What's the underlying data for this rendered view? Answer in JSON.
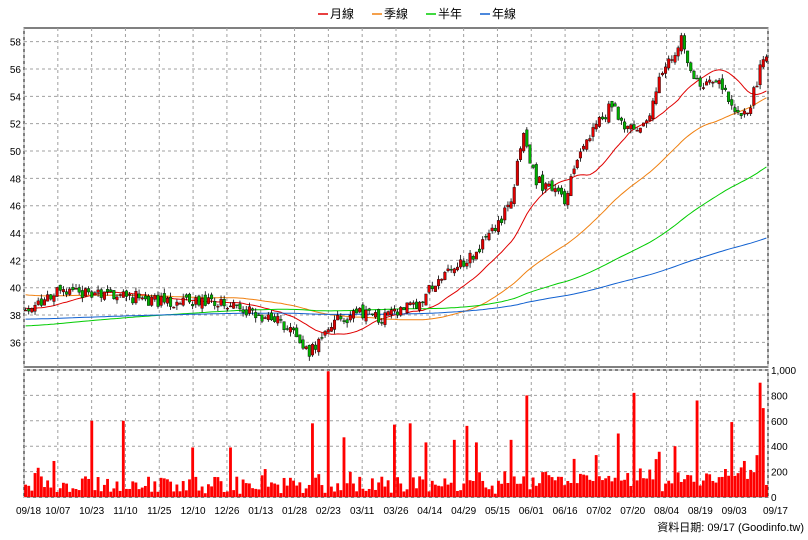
{
  "chart_data": {
    "type": "candlestick",
    "legend": [
      {
        "name": "月線",
        "color": "#e00000"
      },
      {
        "name": "季線",
        "color": "#f08010"
      },
      {
        "name": "半年",
        "color": "#00cc00"
      },
      {
        "name": "年線",
        "color": "#1060d0"
      }
    ],
    "price_axis": {
      "ylim": [
        34.2,
        59
      ],
      "ticks": [
        36,
        38,
        40,
        42,
        44,
        46,
        48,
        50,
        52,
        54,
        56,
        58
      ]
    },
    "volume_axis": {
      "ylim": [
        0,
        1000
      ],
      "ticks": [
        0,
        200,
        400,
        600,
        800,
        1000
      ],
      "tick_labels": [
        "0",
        "200",
        "400",
        "600",
        "800",
        "1,000"
      ]
    },
    "x_labels": [
      "09/18",
      "10/07",
      "10/23",
      "11/10",
      "11/25",
      "12/10",
      "12/26",
      "01/13",
      "01/28",
      "02/23",
      "03/11",
      "03/26",
      "04/14",
      "04/29",
      "05/15",
      "06/01",
      "06/16",
      "07/02",
      "07/20",
      "08/04",
      "08/19",
      "09/03",
      "09/17"
    ],
    "price_keyframes": [
      [
        0,
        38.6
      ],
      [
        10,
        39.6
      ],
      [
        20,
        39.5
      ],
      [
        35,
        39.3
      ],
      [
        45,
        38.9
      ],
      [
        55,
        39.1
      ],
      [
        70,
        38.3
      ],
      [
        80,
        37.6
      ],
      [
        85,
        36.6
      ],
      [
        90,
        35.3
      ],
      [
        98,
        37.5
      ],
      [
        106,
        38.2
      ],
      [
        114,
        37.8
      ],
      [
        120,
        38.4
      ],
      [
        126,
        39.2
      ],
      [
        132,
        40.8
      ],
      [
        140,
        42.0
      ],
      [
        146,
        43.5
      ],
      [
        150,
        44.6
      ],
      [
        154,
        46.6
      ],
      [
        158,
        51.2
      ],
      [
        162,
        47.8
      ],
      [
        166,
        47.3
      ],
      [
        171,
        46.4
      ],
      [
        176,
        49.8
      ],
      [
        182,
        52.2
      ],
      [
        186,
        53.3
      ],
      [
        191,
        51.6
      ],
      [
        197,
        51.9
      ],
      [
        202,
        55.8
      ],
      [
        208,
        58.1
      ],
      [
        212,
        55.4
      ],
      [
        216,
        54.7
      ],
      [
        220,
        55.5
      ],
      [
        224,
        53.1
      ],
      [
        229,
        52.6
      ],
      [
        233,
        56.0
      ],
      [
        235,
        56.8
      ]
    ],
    "volume_spikes": [
      [
        4,
        230
      ],
      [
        21,
        600
      ],
      [
        31,
        600
      ],
      [
        53,
        390
      ],
      [
        65,
        390
      ],
      [
        76,
        220
      ],
      [
        91,
        580
      ],
      [
        96,
        990
      ],
      [
        101,
        470
      ],
      [
        117,
        570
      ],
      [
        122,
        580
      ],
      [
        127,
        430
      ],
      [
        136,
        450
      ],
      [
        140,
        560
      ],
      [
        143,
        430
      ],
      [
        154,
        450
      ],
      [
        159,
        800
      ],
      [
        174,
        300
      ],
      [
        181,
        330
      ],
      [
        188,
        500
      ],
      [
        193,
        820
      ],
      [
        206,
        400
      ],
      [
        213,
        760
      ],
      [
        224,
        590
      ],
      [
        233,
        900
      ],
      [
        234,
        700
      ]
    ],
    "footer_text": "資料日期: 09/17  (Goodinfo.tw)"
  }
}
